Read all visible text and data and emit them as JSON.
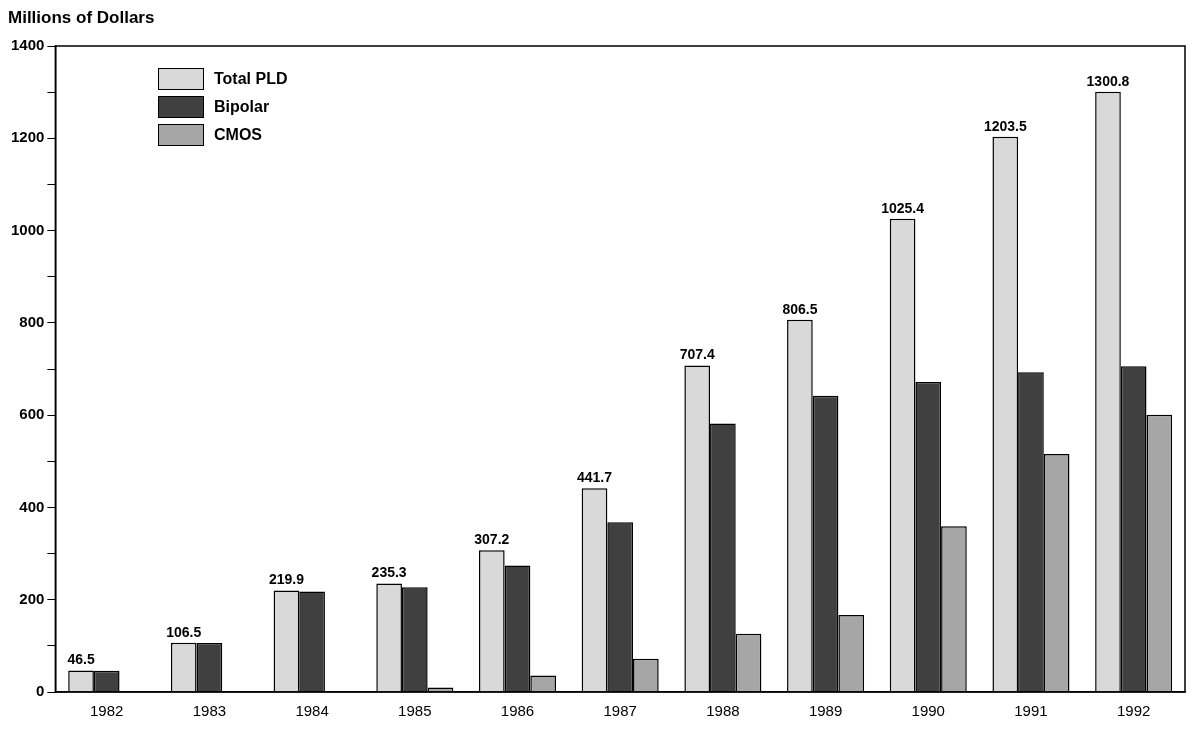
{
  "chart_data": {
    "type": "bar",
    "ylabel": "Millions of Dollars",
    "categories": [
      "1982",
      "1983",
      "1984",
      "1985",
      "1986",
      "1987",
      "1988",
      "1989",
      "1990",
      "1991",
      "1992"
    ],
    "series": [
      {
        "name": "Total PLD",
        "color": "#d9d9d9",
        "values": [
          46.5,
          106.5,
          219.9,
          235.3,
          307.2,
          441.7,
          707.4,
          806.5,
          1025.4,
          1203.5,
          1300.8
        ],
        "value_labels": [
          "46.5",
          "106.5",
          "219.9",
          "235.3",
          "307.2",
          "441.7",
          "707.4",
          "806.5",
          "1025.4",
          "1203.5",
          "1300.8"
        ]
      },
      {
        "name": "Bipolar",
        "color": "#404040",
        "values": [
          46,
          106,
          218,
          227,
          274,
          368,
          582,
          642,
          672,
          693,
          706
        ]
      },
      {
        "name": "CMOS",
        "color": "#a6a6a6",
        "values": [
          0,
          null,
          null,
          10,
          36,
          72,
          126,
          167,
          359,
          516,
          601
        ]
      }
    ],
    "ylim": [
      0,
      1400
    ],
    "yticks": [
      0,
      {
        "value": 100,
        "label": null
      },
      200,
      {
        "value": 300,
        "label": null
      },
      400,
      {
        "value": 500,
        "label": null
      },
      600,
      {
        "value": 700,
        "label": null
      },
      800,
      {
        "value": 900,
        "label": null
      },
      1000,
      {
        "value": 1100,
        "label": null
      },
      1200,
      {
        "value": 1300,
        "label": null
      },
      1400
    ],
    "grid": false,
    "legend": "top left"
  }
}
